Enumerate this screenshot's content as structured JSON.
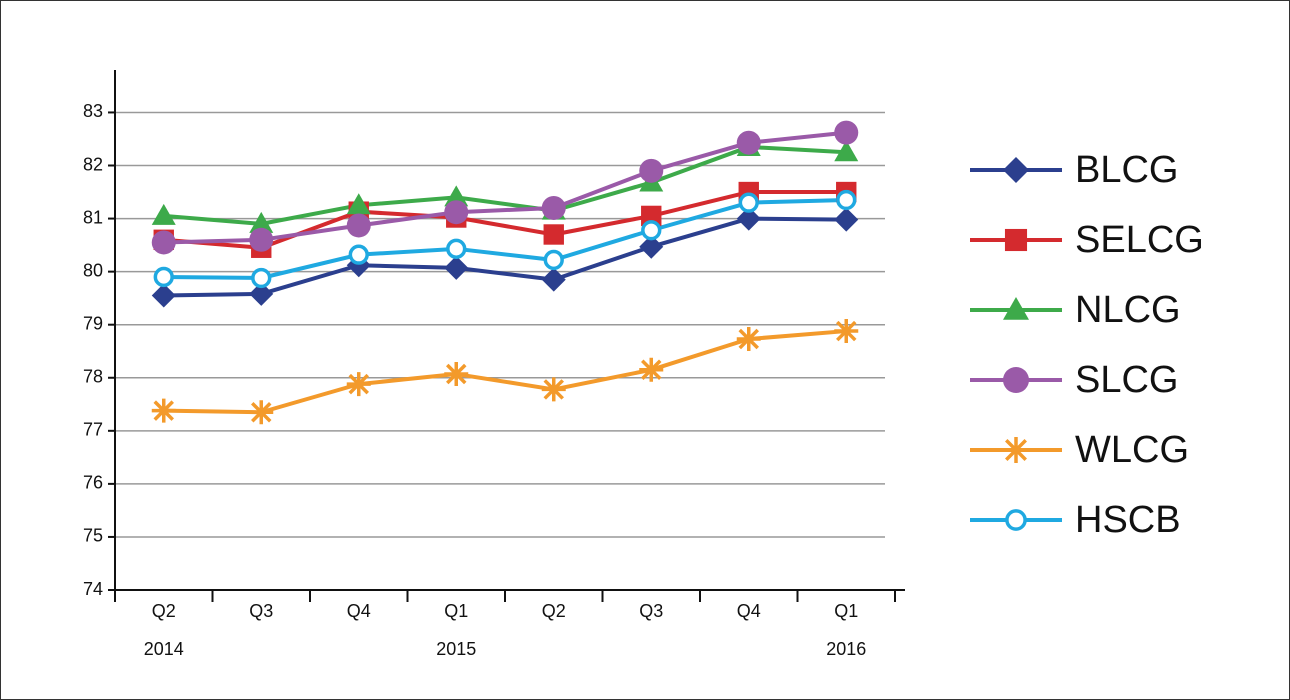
{
  "chart_data": {
    "type": "line",
    "categories": [
      "Q2",
      "Q3",
      "Q4",
      "Q1",
      "Q2",
      "Q3",
      "Q4",
      "Q1"
    ],
    "year_labels": [
      "2014",
      null,
      null,
      "2015",
      null,
      null,
      null,
      "2016"
    ],
    "ylim": [
      74,
      83.8
    ],
    "yticks": [
      74,
      75,
      76,
      77,
      78,
      79,
      80,
      81,
      82,
      83
    ],
    "grid": true,
    "legend": "right",
    "series": [
      {
        "name": "BLCG",
        "color": "#2b3f8e",
        "marker": "diamond",
        "values": [
          79.55,
          79.58,
          80.12,
          80.07,
          79.85,
          80.47,
          81.0,
          80.98
        ]
      },
      {
        "name": "SELCG",
        "color": "#d42a2e",
        "marker": "square",
        "values": [
          80.6,
          80.45,
          81.13,
          81.02,
          80.7,
          81.05,
          81.5,
          81.5
        ]
      },
      {
        "name": "NLCG",
        "color": "#3daa4a",
        "marker": "triangle",
        "values": [
          81.05,
          80.9,
          81.25,
          81.4,
          81.15,
          81.68,
          82.35,
          82.25
        ]
      },
      {
        "name": "SLCG",
        "color": "#9a5aa8",
        "marker": "circle",
        "values": [
          80.55,
          80.6,
          80.87,
          81.12,
          81.2,
          81.9,
          82.43,
          82.62
        ]
      },
      {
        "name": "WLCG",
        "color": "#f39a2b",
        "marker": "asterisk",
        "values": [
          77.38,
          77.35,
          77.88,
          78.07,
          77.78,
          78.15,
          78.73,
          78.88
        ]
      },
      {
        "name": "HSCB",
        "color": "#1fa9e1",
        "marker": "open-circle",
        "values": [
          79.9,
          79.88,
          80.32,
          80.43,
          80.22,
          80.78,
          81.3,
          81.35
        ]
      }
    ]
  }
}
